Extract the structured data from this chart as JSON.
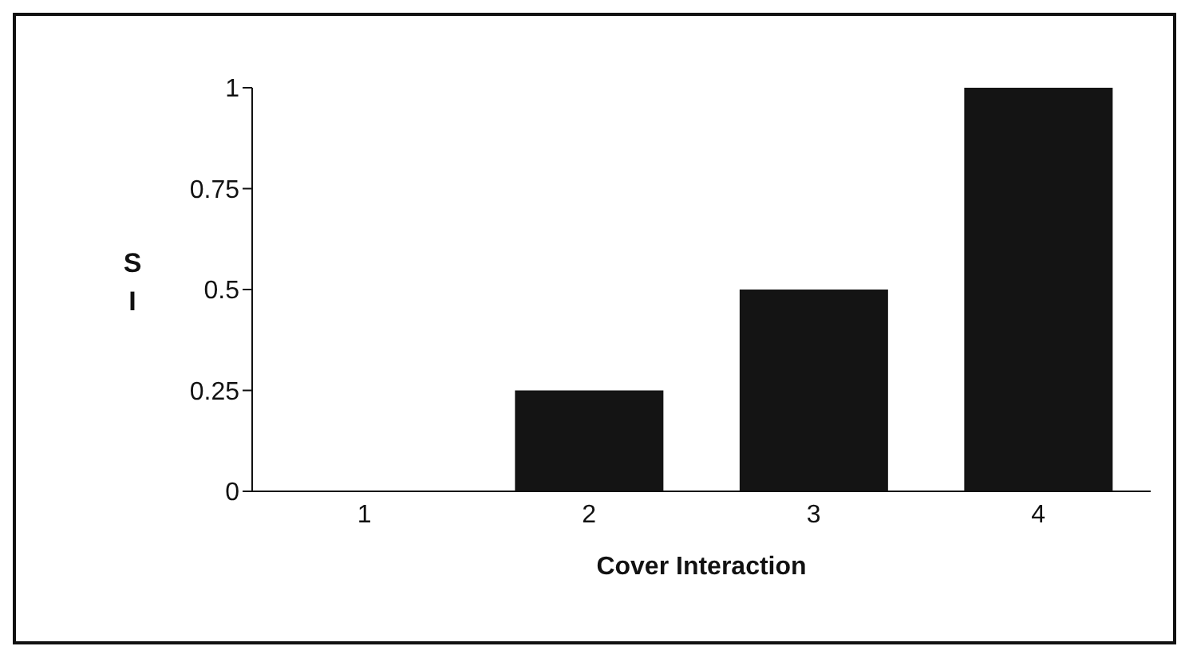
{
  "chart_data": {
    "type": "bar",
    "xlabel": "Cover Interaction",
    "ylabel": "S I",
    "categories": [
      "1",
      "2",
      "3",
      "4"
    ],
    "values": [
      0,
      0.25,
      0.5,
      1
    ],
    "color": "#141414",
    "ylim": [
      0,
      1
    ],
    "yticks": [
      0,
      0.25,
      0.5,
      0.75,
      1
    ],
    "grid": false
  }
}
